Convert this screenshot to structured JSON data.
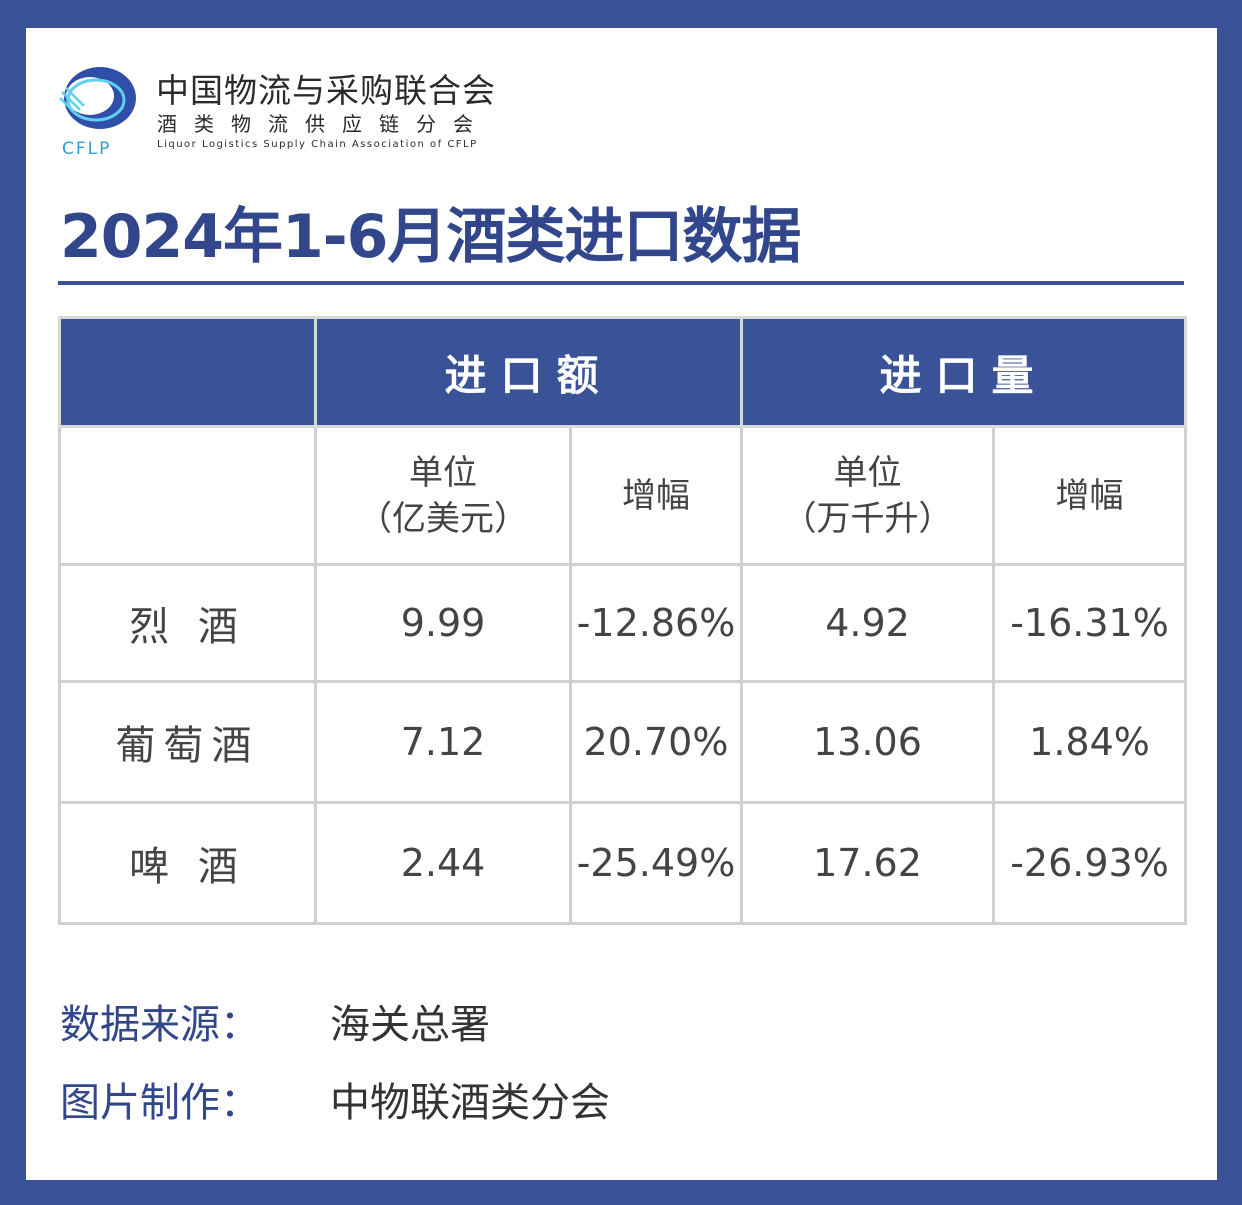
{
  "org": {
    "name_cn": "中国物流与采购联合会",
    "sub_cn": "酒类物流供应链分会",
    "name_en": "Liquor Logistics Supply Chain Association of CFLP",
    "logo_text": "CFLP",
    "brand_color": "#3a5297"
  },
  "title": "2024年1-6月酒类进口数据",
  "chart_data": {
    "type": "table",
    "group_headers": [
      "进口额",
      "进口量"
    ],
    "sub_headers": [
      {
        "unit_line1": "单位",
        "unit_line2": "（亿美元）"
      },
      {
        "label": "增幅"
      },
      {
        "unit_line1": "单位",
        "unit_line2": "（万千升）"
      },
      {
        "label": "增幅"
      }
    ],
    "rows": [
      {
        "name": "烈 酒",
        "import_value": "9.99",
        "value_growth": "-12.86%",
        "import_volume": "4.92",
        "volume_growth": "-16.31%"
      },
      {
        "name": "葡萄酒",
        "import_value": "7.12",
        "value_growth": "20.70%",
        "import_volume": "13.06",
        "volume_growth": "1.84%"
      },
      {
        "name": "啤 酒",
        "import_value": "2.44",
        "value_growth": "-25.49%",
        "import_volume": "17.62",
        "volume_growth": "-26.93%"
      }
    ]
  },
  "footer": {
    "source_label": "数据来源：",
    "source_value": "海关总署",
    "made_label": "图片制作：",
    "made_value": "中物联酒类分会"
  }
}
